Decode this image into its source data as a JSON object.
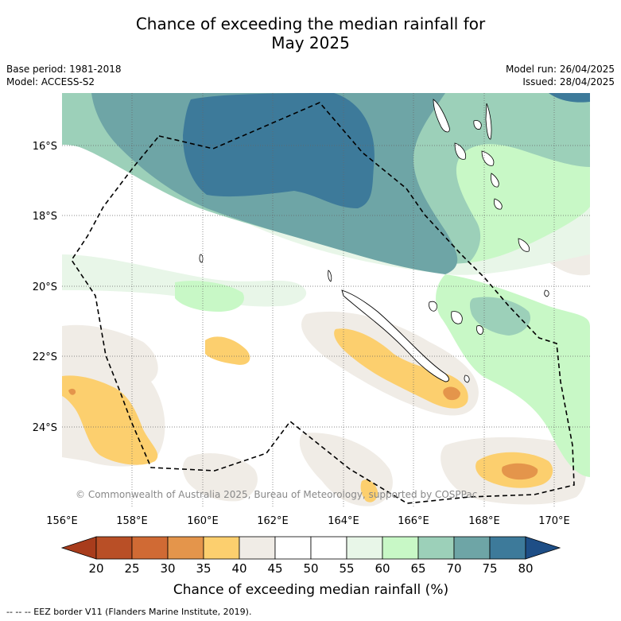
{
  "title_line1": "Chance of exceeding the median rainfall for",
  "title_line2": "May 2025",
  "base_period": "Base period: 1981-2018",
  "model": "Model: ACCESS-S2",
  "model_run": "Model run: 26/04/2025",
  "issued": "Issued: 28/04/2025",
  "copyright": "© Commonwealth of Australia 2025, Bureau of Meteorology, supported by COSPPac",
  "lat_labels": [
    "16°S",
    "18°S",
    "20°S",
    "22°S",
    "24°S"
  ],
  "lon_labels": [
    "156°E",
    "158°E",
    "160°E",
    "162°E",
    "164°E",
    "166°E",
    "168°E",
    "170°E"
  ],
  "colorbar": {
    "ticks": [
      "20",
      "25",
      "30",
      "35",
      "40",
      "45",
      "50",
      "55",
      "60",
      "65",
      "70",
      "75",
      "80"
    ],
    "label": "Chance of exceeding median rainfall (%)",
    "colors": [
      "#a83c1c",
      "#b94f26",
      "#d06a34",
      "#e4954b",
      "#fccf6e",
      "#f0ece6",
      "#ffffff",
      "#ffffff",
      "#e8f6e8",
      "#c8f8c6",
      "#9cd0b9",
      "#6ea5a6",
      "#3d7a9a",
      "#1e4e86"
    ]
  },
  "eez_note": "-- -- -- EEZ border V11 (Flanders Marine Institute, 2019)."
}
